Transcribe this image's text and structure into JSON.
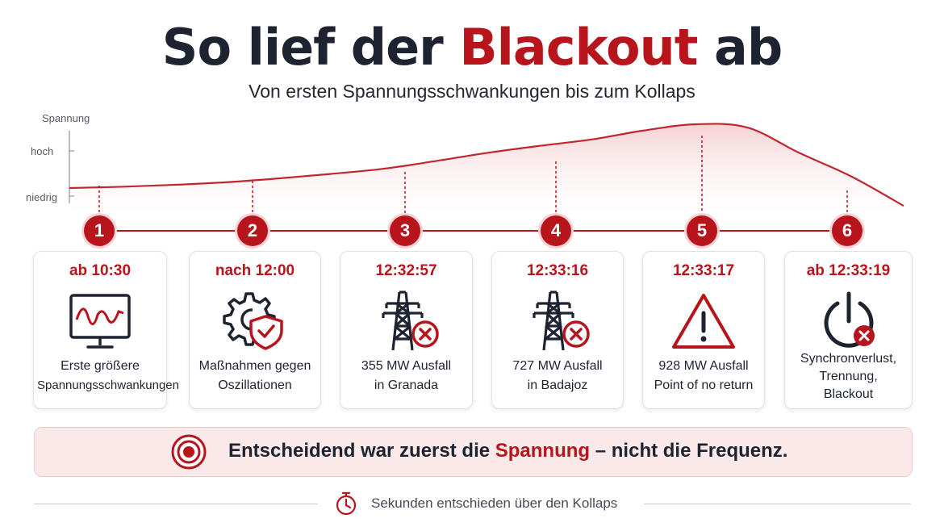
{
  "header": {
    "title_prefix": "So lief der ",
    "title_accent": "Blackout",
    "title_suffix": " ab",
    "subtitle": "Von ersten Spannungsschwankungen bis zum Kollaps"
  },
  "chart_data": {
    "type": "area",
    "ylabel": "Spannung",
    "y_ticks": [
      "hoch",
      "niedrig"
    ],
    "series": [
      {
        "values": [
          0.0,
          0.02,
          0.05,
          0.09,
          0.15,
          0.22,
          0.3,
          0.42,
          0.55,
          0.66,
          0.76,
          0.9,
          1.0,
          0.95,
          0.55,
          0.18,
          -0.28
        ]
      }
    ],
    "grid": false
  },
  "steps": [
    {
      "number": "1",
      "time": "ab 10:30",
      "icon": "oscilloscope-monitor-icon",
      "lines": [
        "Erste größere",
        "Spannungsschwankungen"
      ]
    },
    {
      "number": "2",
      "time": "nach 12:00",
      "icon": "gear-shield-icon",
      "lines": [
        "Maßnahmen gegen",
        "Oszillationen"
      ]
    },
    {
      "number": "3",
      "time": "12:32:57",
      "icon": "power-tower-failure-icon",
      "lines": [
        "355 MW Ausfall",
        "in Granada"
      ]
    },
    {
      "number": "4",
      "time": "12:33:16",
      "icon": "power-tower-failure-icon",
      "lines": [
        "727 MW Ausfall",
        "in Badajoz"
      ]
    },
    {
      "number": "5",
      "time": "12:33:17",
      "icon": "warning-icon",
      "lines": [
        "928 MW Ausfall",
        "Point of no return"
      ]
    },
    {
      "number": "6",
      "time": "ab 12:33:19",
      "icon": "power-off-icon",
      "lines": [
        "Synchronverlust,",
        "Trennung,",
        "Blackout"
      ]
    }
  ],
  "banner": {
    "prefix": "Entscheidend war zuerst die ",
    "accent": "Spannung",
    "suffix": " – nicht die Frequenz."
  },
  "footer": {
    "text": "Sekunden entschieden über den Kollaps"
  },
  "colors": {
    "accent": "#b8141c",
    "text": "#1d2330",
    "banner_bg": "#fbe9ea"
  }
}
